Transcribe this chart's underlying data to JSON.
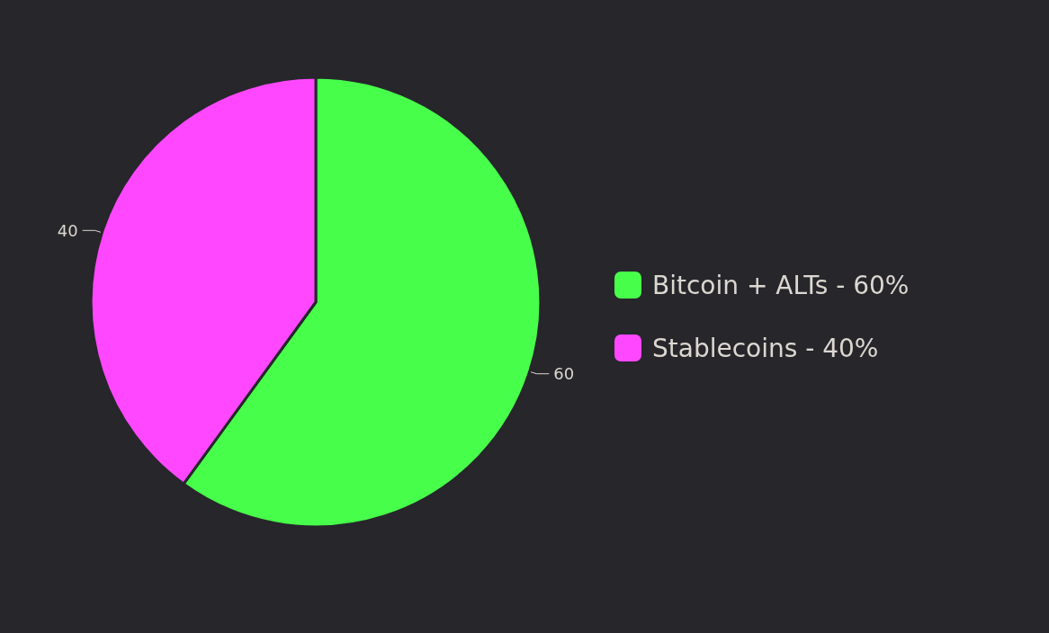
{
  "chart_data": {
    "type": "pie",
    "categories": [
      "Bitcoin + ALTs - 60%",
      "Stablecoins - 40%"
    ],
    "values": [
      60,
      40
    ],
    "colors": [
      "#47ff4a",
      "#ff47ff"
    ],
    "data_labels": true,
    "legend": "right"
  }
}
